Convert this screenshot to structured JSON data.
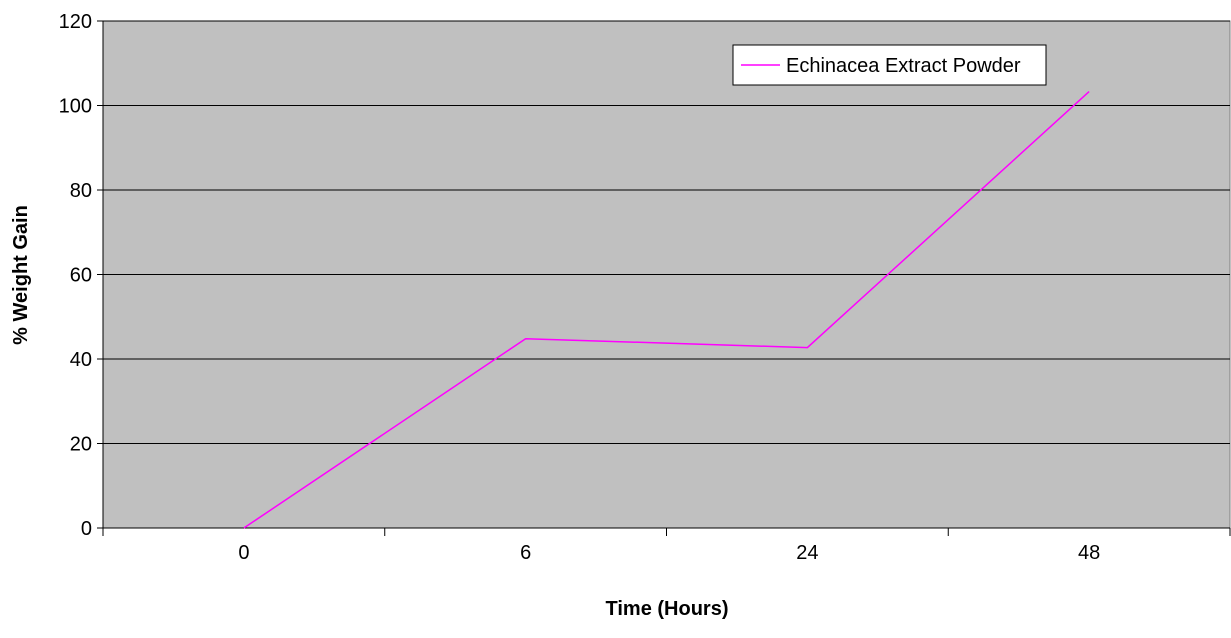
{
  "chart_data": {
    "type": "line",
    "title": "",
    "xlabel": "Time (Hours)",
    "ylabel": "% Weight Gain",
    "categories": [
      "0",
      "6",
      "24",
      "48"
    ],
    "series": [
      {
        "name": "Echinacea Extract Powder",
        "values": [
          0,
          44.8,
          42.7,
          103.3
        ],
        "color": "#ff00ff"
      }
    ],
    "ylim": [
      0,
      120
    ],
    "yticks": [
      "0",
      "20",
      "40",
      "60",
      "80",
      "100",
      "120"
    ],
    "grid": true,
    "legend_position": "top-right",
    "plot_background": "#c0c0c0",
    "gridline_color": "#000000"
  }
}
